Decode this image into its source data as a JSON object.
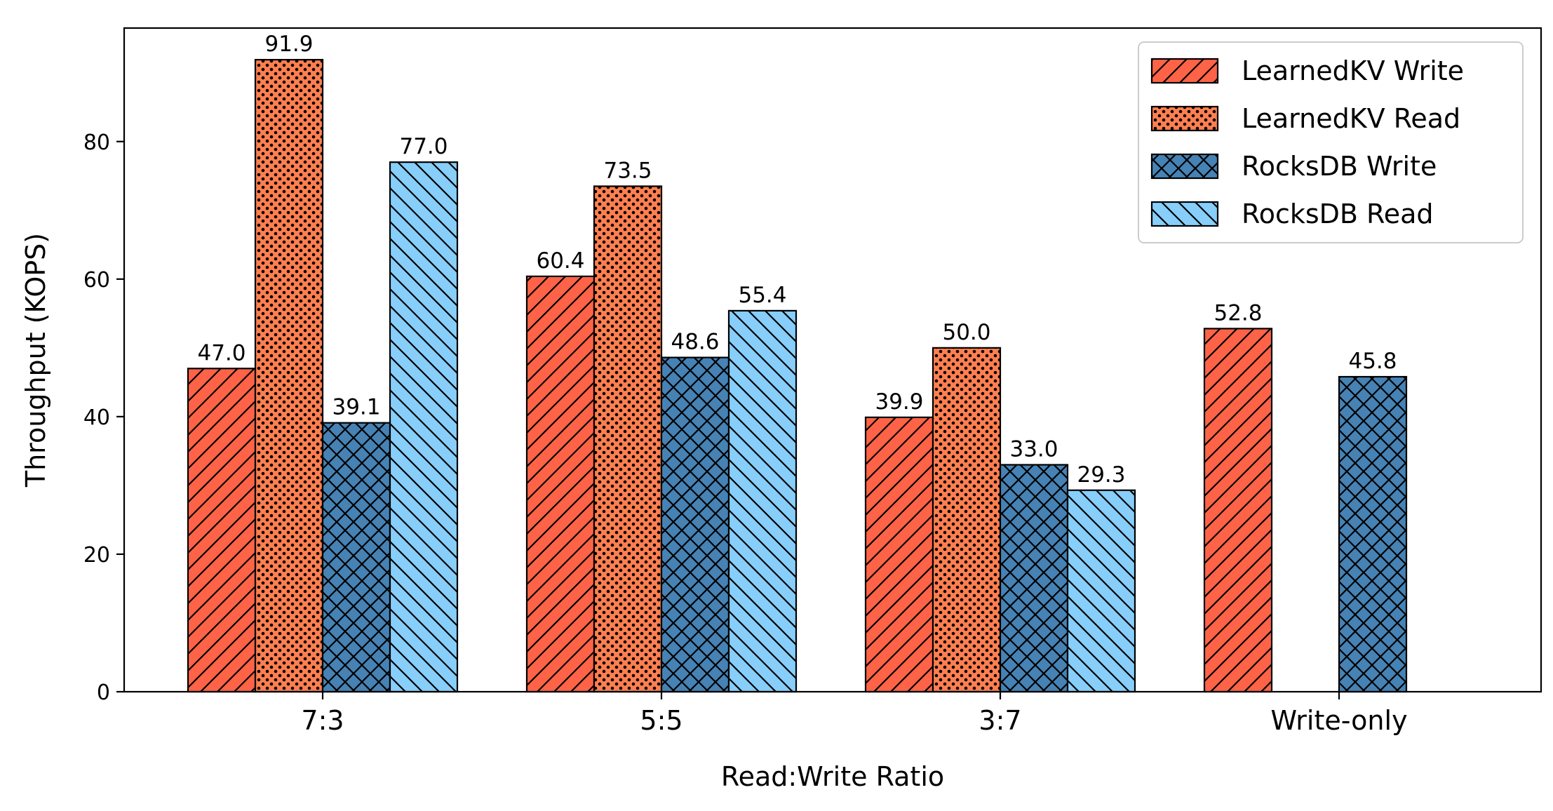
{
  "chart_data": {
    "type": "bar",
    "xlabel": "Read:Write Ratio",
    "ylabel": "Throughput (KOPS)",
    "categories": [
      "7:3",
      "5:5",
      "3:7",
      "Write-only"
    ],
    "ylim": [
      0,
      96.5
    ],
    "yticks": [
      0,
      20,
      40,
      60,
      80
    ],
    "series": [
      {
        "name": "LearnedKV Write",
        "values": [
          47.0,
          60.4,
          39.9,
          52.8
        ],
        "labels": [
          "47.0",
          "60.4",
          "39.9",
          "52.8"
        ],
        "color": "#ff6347",
        "hatch": "diag-fwd"
      },
      {
        "name": "LearnedKV Read",
        "values": [
          91.9,
          73.5,
          50.0,
          0
        ],
        "labels": [
          "91.9",
          "73.5",
          "50.0",
          ""
        ],
        "color": "#ff7f50",
        "hatch": "dots"
      },
      {
        "name": "RocksDB Write",
        "values": [
          39.1,
          48.6,
          33.0,
          45.8
        ],
        "labels": [
          "39.1",
          "48.6",
          "33.0",
          "45.8"
        ],
        "color": "#4682b4",
        "hatch": "crosshatch"
      },
      {
        "name": "RocksDB Read",
        "values": [
          77.0,
          55.4,
          29.3,
          0
        ],
        "labels": [
          "77.0",
          "55.4",
          "29.3",
          ""
        ],
        "color": "#87cefa",
        "hatch": "diag-back"
      }
    ],
    "legend": "top-right",
    "grid": false
  }
}
